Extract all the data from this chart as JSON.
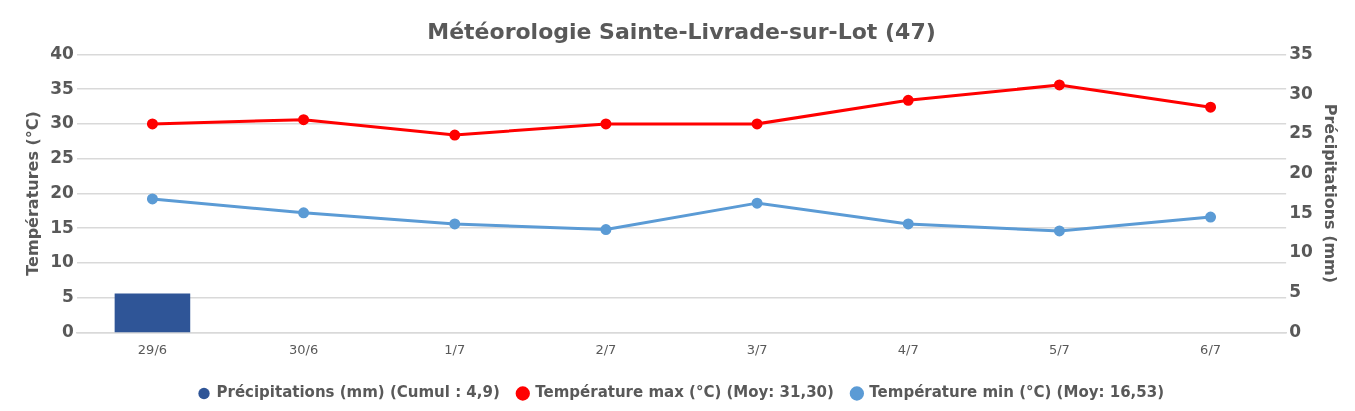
{
  "chart_data": {
    "type": "line",
    "title": "Météorologie Sainte-Livrade-sur-Lot (47)",
    "ylabel": "Températures (°C)",
    "y2label": "Précipitations (mm)",
    "categories": [
      "29/6",
      "30/6",
      "1/7",
      "2/7",
      "3/7",
      "4/7",
      "5/7",
      "6/7"
    ],
    "series": [
      {
        "name": "Précipitations (mm) (Cumul : 4,9)",
        "type": "bar",
        "axis": "y2",
        "color": "#2f5597",
        "values": [
          4.9,
          0,
          0,
          0,
          0,
          0,
          0,
          0
        ]
      },
      {
        "name": "Température max (°C) (Moy: 31,30)",
        "color": "#ff0000",
        "values": [
          30.0,
          30.6,
          28.4,
          30.0,
          30.0,
          33.4,
          35.6,
          32.4
        ]
      },
      {
        "name": "Température min (°C) (Moy: 16,53)",
        "color": "#5b9bd5",
        "values": [
          19.2,
          17.2,
          15.6,
          14.8,
          18.6,
          15.6,
          14.6,
          16.6
        ]
      }
    ],
    "ylim": [
      0,
      40
    ],
    "yticks": [
      0,
      5,
      10,
      15,
      20,
      25,
      30,
      35,
      40
    ],
    "y2lim": [
      0,
      35
    ],
    "y2ticks": [
      0,
      5,
      10,
      15,
      20,
      25,
      30,
      35
    ],
    "grid": "y",
    "legend": "bottom",
    "marker": "circle",
    "line_style": "solid"
  }
}
